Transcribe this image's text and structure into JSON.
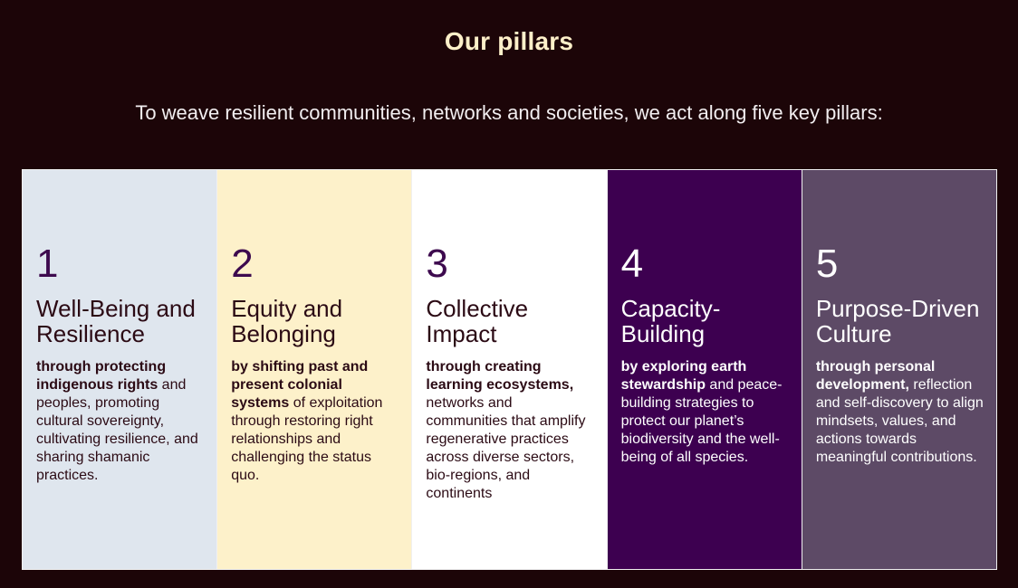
{
  "header": {
    "title": "Our pillars",
    "intro": "To weave resilient communities, networks and societies, we act along five key pillars:"
  },
  "pillars": [
    {
      "number": "1",
      "name": "Well-Being and Resilience",
      "bold": "through protecting indigenous rights",
      "text": " and peoples, promoting cultural sovereignty, cultivating resilience, and sharing shamanic practices.",
      "background": "#dfe6ee"
    },
    {
      "number": "2",
      "name": "Equity and Belonging",
      "bold": "by shifting past and present colonial systems",
      "text": " of exploitation through restoring right relationships and challenging the status quo.",
      "background": "#fdf1ca"
    },
    {
      "number": "3",
      "name": "Collective Impact",
      "bold": "through creating learning ecosystems,",
      "text": " networks and communities that amplify regenerative practices across diverse sectors, bio-regions, and continents",
      "background": "#ffffff"
    },
    {
      "number": "4",
      "name": "Capacity-Building",
      "bold": "by exploring earth stewardship",
      "text": " and peace-building strategies to protect our planet’s biodiversity and the well-being of all species.",
      "background": "#3d0050"
    },
    {
      "number": "5",
      "name": "Purpose-Driven Culture",
      "bold": "through personal development,",
      "text": " reflection and self-discovery to align mindsets, values, and actions towards meaningful contributions.",
      "background": "#5d4a66"
    }
  ],
  "colors": {
    "page_background": "#1c0508",
    "title": "#fdf0c9",
    "number_accent": "#3d0a4e"
  }
}
